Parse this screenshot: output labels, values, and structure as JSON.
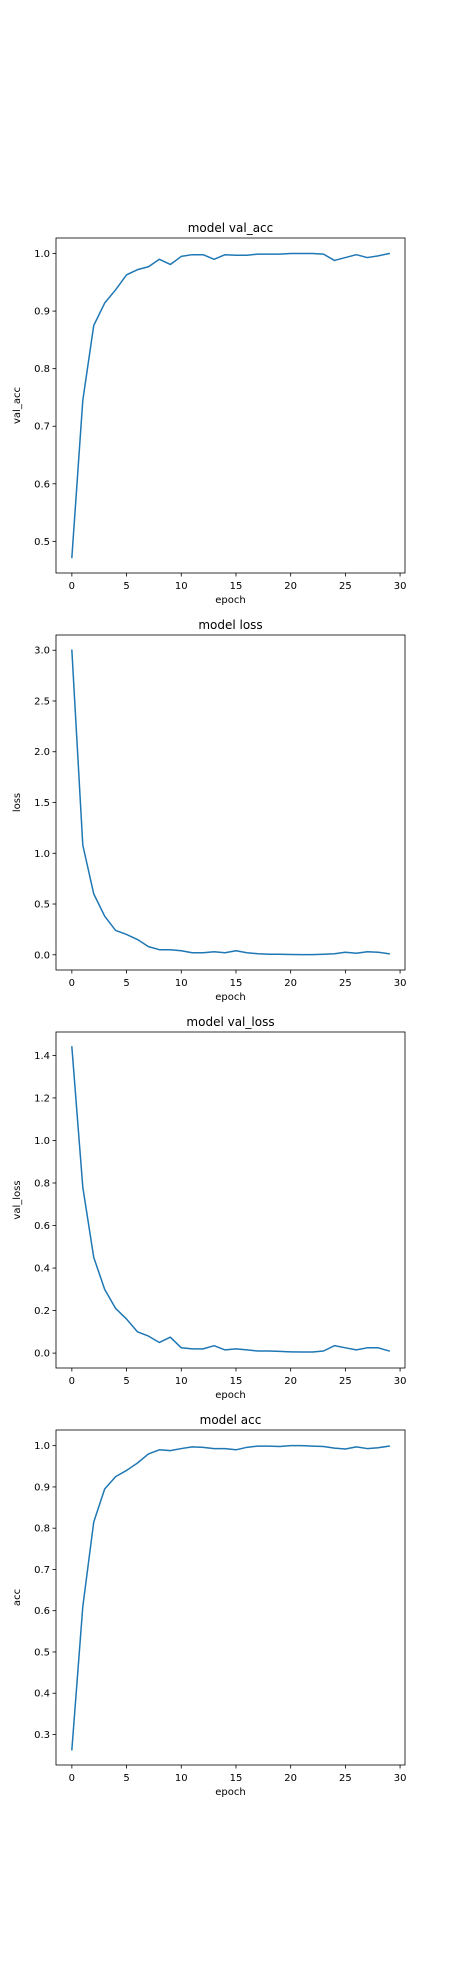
{
  "chart_data": [
    {
      "type": "line",
      "title": "model val_acc",
      "xlabel": "epoch",
      "ylabel": "val_acc",
      "xlim": [
        -1.45,
        30.45
      ],
      "ylim": [
        0.445,
        1.027
      ],
      "xticks": [
        0,
        5,
        10,
        15,
        20,
        25,
        30
      ],
      "yticks": [
        0.5,
        0.6,
        0.7,
        0.8,
        0.9,
        1.0
      ],
      "ytick_labels": [
        "0.5",
        "0.6",
        "0.7",
        "0.8",
        "0.9",
        "1.0"
      ],
      "grid": false,
      "series": [
        {
          "color": "#1f77b4",
          "x": [
            0,
            1,
            2,
            3,
            4,
            5,
            6,
            7,
            8,
            9,
            10,
            11,
            12,
            13,
            14,
            15,
            16,
            17,
            18,
            19,
            20,
            21,
            22,
            23,
            24,
            25,
            26,
            27,
            28,
            29
          ],
          "values": [
            0.472,
            0.745,
            0.875,
            0.914,
            0.937,
            0.963,
            0.972,
            0.977,
            0.99,
            0.981,
            0.995,
            0.998,
            0.998,
            0.99,
            0.998,
            0.997,
            0.997,
            0.999,
            0.999,
            0.999,
            1.0,
            1.0,
            1.0,
            0.999,
            0.988,
            0.993,
            0.998,
            0.993,
            0.996,
            1.0
          ]
        }
      ]
    },
    {
      "type": "line",
      "title": "model loss",
      "xlabel": "epoch",
      "ylabel": "loss",
      "xlim": [
        -1.45,
        30.45
      ],
      "ylim": [
        -0.15,
        3.15
      ],
      "xticks": [
        0,
        5,
        10,
        15,
        20,
        25,
        30
      ],
      "yticks": [
        0.0,
        0.5,
        1.0,
        1.5,
        2.0,
        2.5,
        3.0
      ],
      "ytick_labels": [
        "0.0",
        "0.5",
        "1.0",
        "1.5",
        "2.0",
        "2.5",
        "3.0"
      ],
      "grid": false,
      "series": [
        {
          "color": "#1f77b4",
          "x": [
            0,
            1,
            2,
            3,
            4,
            5,
            6,
            7,
            8,
            9,
            10,
            11,
            12,
            13,
            14,
            15,
            16,
            17,
            18,
            19,
            20,
            21,
            22,
            23,
            24,
            25,
            26,
            27,
            28,
            29
          ],
          "values": [
            3.0,
            1.08,
            0.6,
            0.38,
            0.24,
            0.2,
            0.15,
            0.08,
            0.05,
            0.05,
            0.04,
            0.02,
            0.02,
            0.03,
            0.02,
            0.04,
            0.02,
            0.01,
            0.005,
            0.005,
            0.003,
            0.002,
            0.002,
            0.005,
            0.01,
            0.025,
            0.015,
            0.03,
            0.025,
            0.01
          ]
        }
      ]
    },
    {
      "type": "line",
      "title": "model val_loss",
      "xlabel": "epoch",
      "ylabel": "val_loss",
      "xlim": [
        -1.45,
        30.45
      ],
      "ylim": [
        -0.07,
        1.51
      ],
      "xticks": [
        0,
        5,
        10,
        15,
        20,
        25,
        30
      ],
      "yticks": [
        0.0,
        0.2,
        0.4,
        0.6,
        0.8,
        1.0,
        1.2,
        1.4
      ],
      "ytick_labels": [
        "0.0",
        "0.2",
        "0.4",
        "0.6",
        "0.8",
        "1.0",
        "1.2",
        "1.4"
      ],
      "grid": false,
      "series": [
        {
          "color": "#1f77b4",
          "x": [
            0,
            1,
            2,
            3,
            4,
            5,
            6,
            7,
            8,
            9,
            10,
            11,
            12,
            13,
            14,
            15,
            16,
            17,
            18,
            19,
            20,
            21,
            22,
            23,
            24,
            25,
            26,
            27,
            28,
            29
          ],
          "values": [
            1.44,
            0.78,
            0.45,
            0.3,
            0.21,
            0.16,
            0.1,
            0.08,
            0.05,
            0.075,
            0.025,
            0.02,
            0.02,
            0.035,
            0.015,
            0.02,
            0.015,
            0.01,
            0.01,
            0.008,
            0.006,
            0.005,
            0.005,
            0.01,
            0.035,
            0.025,
            0.015,
            0.025,
            0.025,
            0.01
          ]
        }
      ]
    },
    {
      "type": "line",
      "title": "model acc",
      "xlabel": "epoch",
      "ylabel": "acc",
      "xlim": [
        -1.45,
        30.45
      ],
      "ylim": [
        0.226,
        1.038
      ],
      "xticks": [
        0,
        5,
        10,
        15,
        20,
        25,
        30
      ],
      "yticks": [
        0.3,
        0.4,
        0.5,
        0.6,
        0.7,
        0.8,
        0.9,
        1.0
      ],
      "ytick_labels": [
        "0.3",
        "0.4",
        "0.5",
        "0.6",
        "0.7",
        "0.8",
        "0.9",
        "1.0"
      ],
      "grid": false,
      "series": [
        {
          "color": "#1f77b4",
          "x": [
            0,
            1,
            2,
            3,
            4,
            5,
            6,
            7,
            8,
            9,
            10,
            11,
            12,
            13,
            14,
            15,
            16,
            17,
            18,
            19,
            20,
            21,
            22,
            23,
            24,
            25,
            26,
            27,
            28,
            29
          ],
          "values": [
            0.263,
            0.61,
            0.815,
            0.895,
            0.925,
            0.94,
            0.958,
            0.98,
            0.99,
            0.988,
            0.993,
            0.997,
            0.996,
            0.993,
            0.993,
            0.99,
            0.996,
            0.999,
            0.999,
            0.998,
            1.0,
            1.0,
            0.999,
            0.998,
            0.994,
            0.992,
            0.997,
            0.993,
            0.995,
            0.999
          ]
        }
      ]
    }
  ]
}
